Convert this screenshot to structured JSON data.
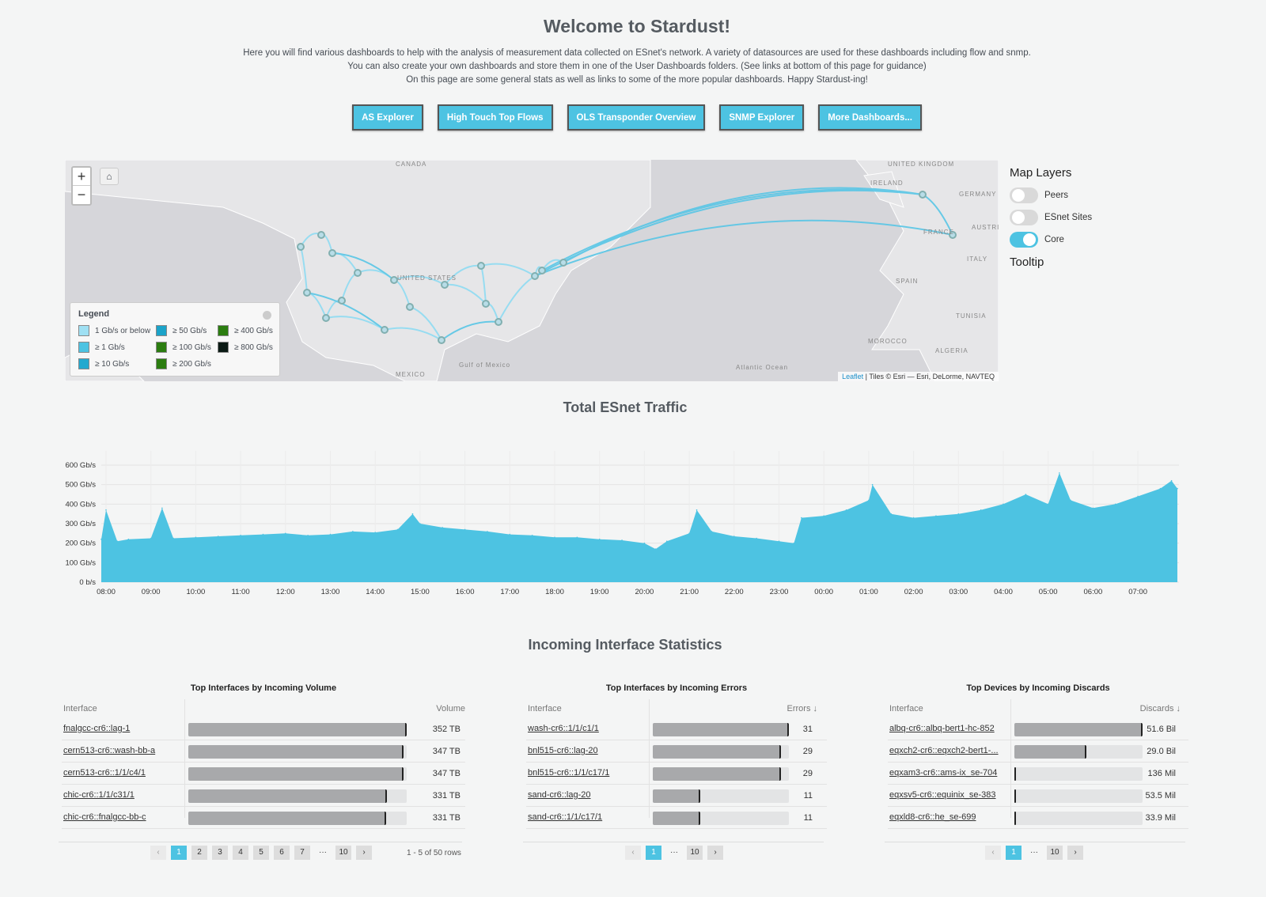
{
  "header": {
    "title": "Welcome to Stardust!",
    "intro": [
      "Here you will find various dashboards to help with the analysis of measurement data collected on ESnet's network. A variety of datasources are used for these dashboards including flow and snmp.",
      "You can also create your own dashboards and store them in one of the User Dashboards folders. (See links at bottom of this page for guidance)",
      "On this page are some general stats as well as links to some of the more popular dashboards. Happy Stardust-ing!"
    ]
  },
  "buttons": [
    "AS Explorer",
    "High Touch Top Flows",
    "OLS Transponder Overview",
    "SNMP Explorer",
    "More Dashboards..."
  ],
  "map": {
    "zoom_in": "+",
    "zoom_out": "−",
    "labels": [
      "CANADA",
      "UNITED STATES",
      "MEXICO",
      "Gulf of Mexico",
      "Atlantic Ocean",
      "IRELAND",
      "UNITED KINGDOM",
      "GERMANY",
      "FRANCE",
      "SPAIN",
      "ITALY",
      "MOROCCO",
      "ALGERIA",
      "TUNISIA",
      "AUSTRIA"
    ],
    "legend": {
      "title": "Legend",
      "items": [
        {
          "label": "1 Gb/s or below",
          "color": "#9fe0f3"
        },
        {
          "label": "≥ 1 Gb/s",
          "color": "#4dc3e2"
        },
        {
          "label": "≥ 10 Gb/s",
          "color": "#22a9cf"
        },
        {
          "label": "≥ 50 Gb/s",
          "color": "#1ba3c9"
        },
        {
          "label": "≥ 100 Gb/s",
          "color": "#2b7d10"
        },
        {
          "label": "≥ 200 Gb/s",
          "color": "#2b7d10"
        },
        {
          "label": "≥ 400 Gb/s",
          "color": "#2b7d10"
        },
        {
          "label": "≥ 800 Gb/s",
          "color": "#0b1a14"
        }
      ]
    },
    "attribution_link": "Leaflet",
    "attribution": " | Tiles © Esri — Esri, DeLorme, NAVTEQ"
  },
  "layers": {
    "title": "Map Layers",
    "toggles": [
      {
        "label": "Peers",
        "on": false
      },
      {
        "label": "ESnet Sites",
        "on": false
      },
      {
        "label": "Core",
        "on": true
      }
    ],
    "tooltip": "Tooltip"
  },
  "traffic": {
    "title": "Total ESnet Traffic"
  },
  "chart_data": {
    "type": "area",
    "title": "Total ESnet Traffic",
    "color": "#4dc3e2",
    "grid": true,
    "y_ticks": [
      "0 b/s",
      "100 Gb/s",
      "200 Gb/s",
      "300 Gb/s",
      "400 Gb/s",
      "500 Gb/s",
      "600 Gb/s"
    ],
    "ylim": [
      0,
      650
    ],
    "yunit": "Gb/s",
    "x_ticks": [
      "08:00",
      "09:00",
      "10:00",
      "11:00",
      "12:00",
      "13:00",
      "14:00",
      "15:00",
      "16:00",
      "17:00",
      "18:00",
      "19:00",
      "20:00",
      "21:00",
      "22:00",
      "23:00",
      "00:00",
      "01:00",
      "02:00",
      "03:00",
      "04:00",
      "05:00",
      "06:00",
      "07:00"
    ],
    "x": [
      "07:55",
      "08:00",
      "08:15",
      "08:30",
      "09:00",
      "09:15",
      "09:30",
      "10:00",
      "10:30",
      "11:00",
      "11:30",
      "12:00",
      "12:30",
      "13:00",
      "13:30",
      "14:00",
      "14:30",
      "14:50",
      "15:00",
      "15:30",
      "16:00",
      "16:30",
      "17:00",
      "17:30",
      "18:00",
      "18:30",
      "19:00",
      "19:30",
      "20:00",
      "20:15",
      "20:30",
      "21:00",
      "21:10",
      "21:30",
      "22:00",
      "22:30",
      "23:00",
      "23:20",
      "23:30",
      "00:00",
      "00:30",
      "01:00",
      "01:05",
      "01:30",
      "02:00",
      "02:30",
      "03:00",
      "03:30",
      "04:00",
      "04:30",
      "05:00",
      "05:15",
      "05:30",
      "06:00",
      "06:30",
      "07:00",
      "07:30",
      "07:45",
      "07:55"
    ],
    "values": [
      220,
      370,
      210,
      220,
      225,
      380,
      225,
      230,
      235,
      240,
      245,
      250,
      240,
      245,
      260,
      255,
      270,
      350,
      300,
      280,
      270,
      260,
      245,
      240,
      230,
      230,
      220,
      215,
      200,
      170,
      210,
      250,
      370,
      260,
      235,
      225,
      210,
      200,
      330,
      340,
      370,
      420,
      500,
      350,
      330,
      340,
      350,
      370,
      400,
      450,
      400,
      560,
      420,
      380,
      400,
      440,
      480,
      520,
      480
    ]
  },
  "stats": {
    "title": "Incoming Interface Statistics",
    "tables": [
      {
        "title": "Top Interfaces by Incoming Volume",
        "col1": "Interface",
        "col2": "Volume",
        "rows": [
          {
            "name": "fnalgcc-cr6::lag-1",
            "value": "352 TB",
            "pct": 1.0
          },
          {
            "name": "cern513-cr6::wash-bb-a",
            "value": "347 TB",
            "pct": 0.986
          },
          {
            "name": "cern513-cr6::1/1/c4/1",
            "value": "347 TB",
            "pct": 0.986
          },
          {
            "name": "chic-cr6::1/1/c31/1",
            "value": "331 TB",
            "pct": 0.91
          },
          {
            "name": "chic-cr6::fnalgcc-bb-c",
            "value": "331 TB",
            "pct": 0.906
          }
        ],
        "pages": [
          "‹",
          "1",
          "2",
          "3",
          "4",
          "5",
          "6",
          "7",
          "···",
          "10",
          "›"
        ],
        "summary": "1 - 5 of 50 rows"
      },
      {
        "title": "Top Interfaces by Incoming Errors",
        "col1": "Interface",
        "col2": "Errors ↓",
        "rows": [
          {
            "name": "wash-cr6::1/1/c1/1",
            "value": "31",
            "pct": 1.0
          },
          {
            "name": "bnl515-cr6::lag-20",
            "value": "29",
            "pct": 0.94
          },
          {
            "name": "bnl515-cr6::1/1/c17/1",
            "value": "29",
            "pct": 0.94
          },
          {
            "name": "sand-cr6::lag-20",
            "value": "11",
            "pct": 0.35
          },
          {
            "name": "sand-cr6::1/1/c17/1",
            "value": "11",
            "pct": 0.35
          }
        ],
        "pages": [
          "‹",
          "1",
          "···",
          "10",
          "›"
        ]
      },
      {
        "title": "Top Devices by Incoming Discards",
        "col1": "Interface",
        "col2": "Discards ↓",
        "rows": [
          {
            "name": "albq-cr6::albq-bert1-hc-852",
            "value": "51.6 Bil",
            "pct": 1.0
          },
          {
            "name": "eqxch2-cr6::eqxch2-bert1-...",
            "value": "29.0 Bil",
            "pct": 0.56
          },
          {
            "name": "eqxam3-cr6::ams-ix_se-704",
            "value": "136 Mil",
            "pct": 0.003
          },
          {
            "name": "eqxsv5-cr6::equinix_se-383",
            "value": "53.5 Mil",
            "pct": 0.001
          },
          {
            "name": "eqxld8-cr6::he_se-699",
            "value": "33.9 Mil",
            "pct": 0.001
          }
        ],
        "pages": [
          "‹",
          "1",
          "···",
          "10",
          "›"
        ]
      }
    ]
  }
}
